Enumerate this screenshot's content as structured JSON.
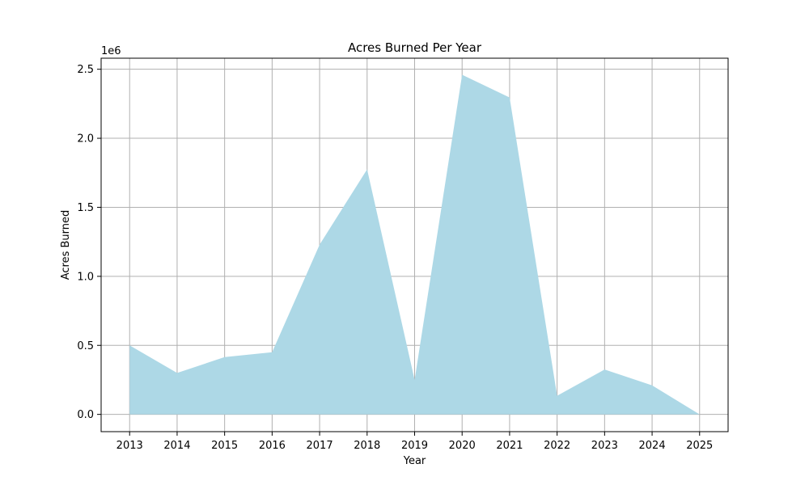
{
  "chart_data": {
    "type": "area",
    "title": "Acres Burned Per Year",
    "xlabel": "Year",
    "ylabel": "Acres Burned",
    "y_offset_label": "1e6",
    "x": [
      2013,
      2014,
      2015,
      2016,
      2017,
      2018,
      2019,
      2020,
      2021,
      2022,
      2023,
      2024,
      2025
    ],
    "series": [
      {
        "values": [
          500000,
          300000,
          415000,
          450000,
          1230000,
          1775000,
          250000,
          2460000,
          2295000,
          135000,
          325000,
          210000,
          0
        ]
      }
    ],
    "xlim": [
      2012.4,
      2025.6
    ],
    "ylim": [
      -125000,
      2580000
    ],
    "x_ticks": [
      2013,
      2014,
      2015,
      2016,
      2017,
      2018,
      2019,
      2020,
      2021,
      2022,
      2023,
      2024,
      2025
    ],
    "x_tick_labels": [
      "2013",
      "2014",
      "2015",
      "2016",
      "2017",
      "2018",
      "2019",
      "2020",
      "2021",
      "2022",
      "2023",
      "2024",
      "2025"
    ],
    "y_ticks": [
      0,
      500000,
      1000000,
      1500000,
      2000000,
      2500000
    ],
    "y_tick_labels": [
      "0.0",
      "0.5",
      "1.0",
      "1.5",
      "2.0",
      "2.5"
    ],
    "grid": true,
    "colors": {
      "fill": "#add8e6",
      "grid": "#b0b0b0",
      "axes": "#000000"
    }
  }
}
